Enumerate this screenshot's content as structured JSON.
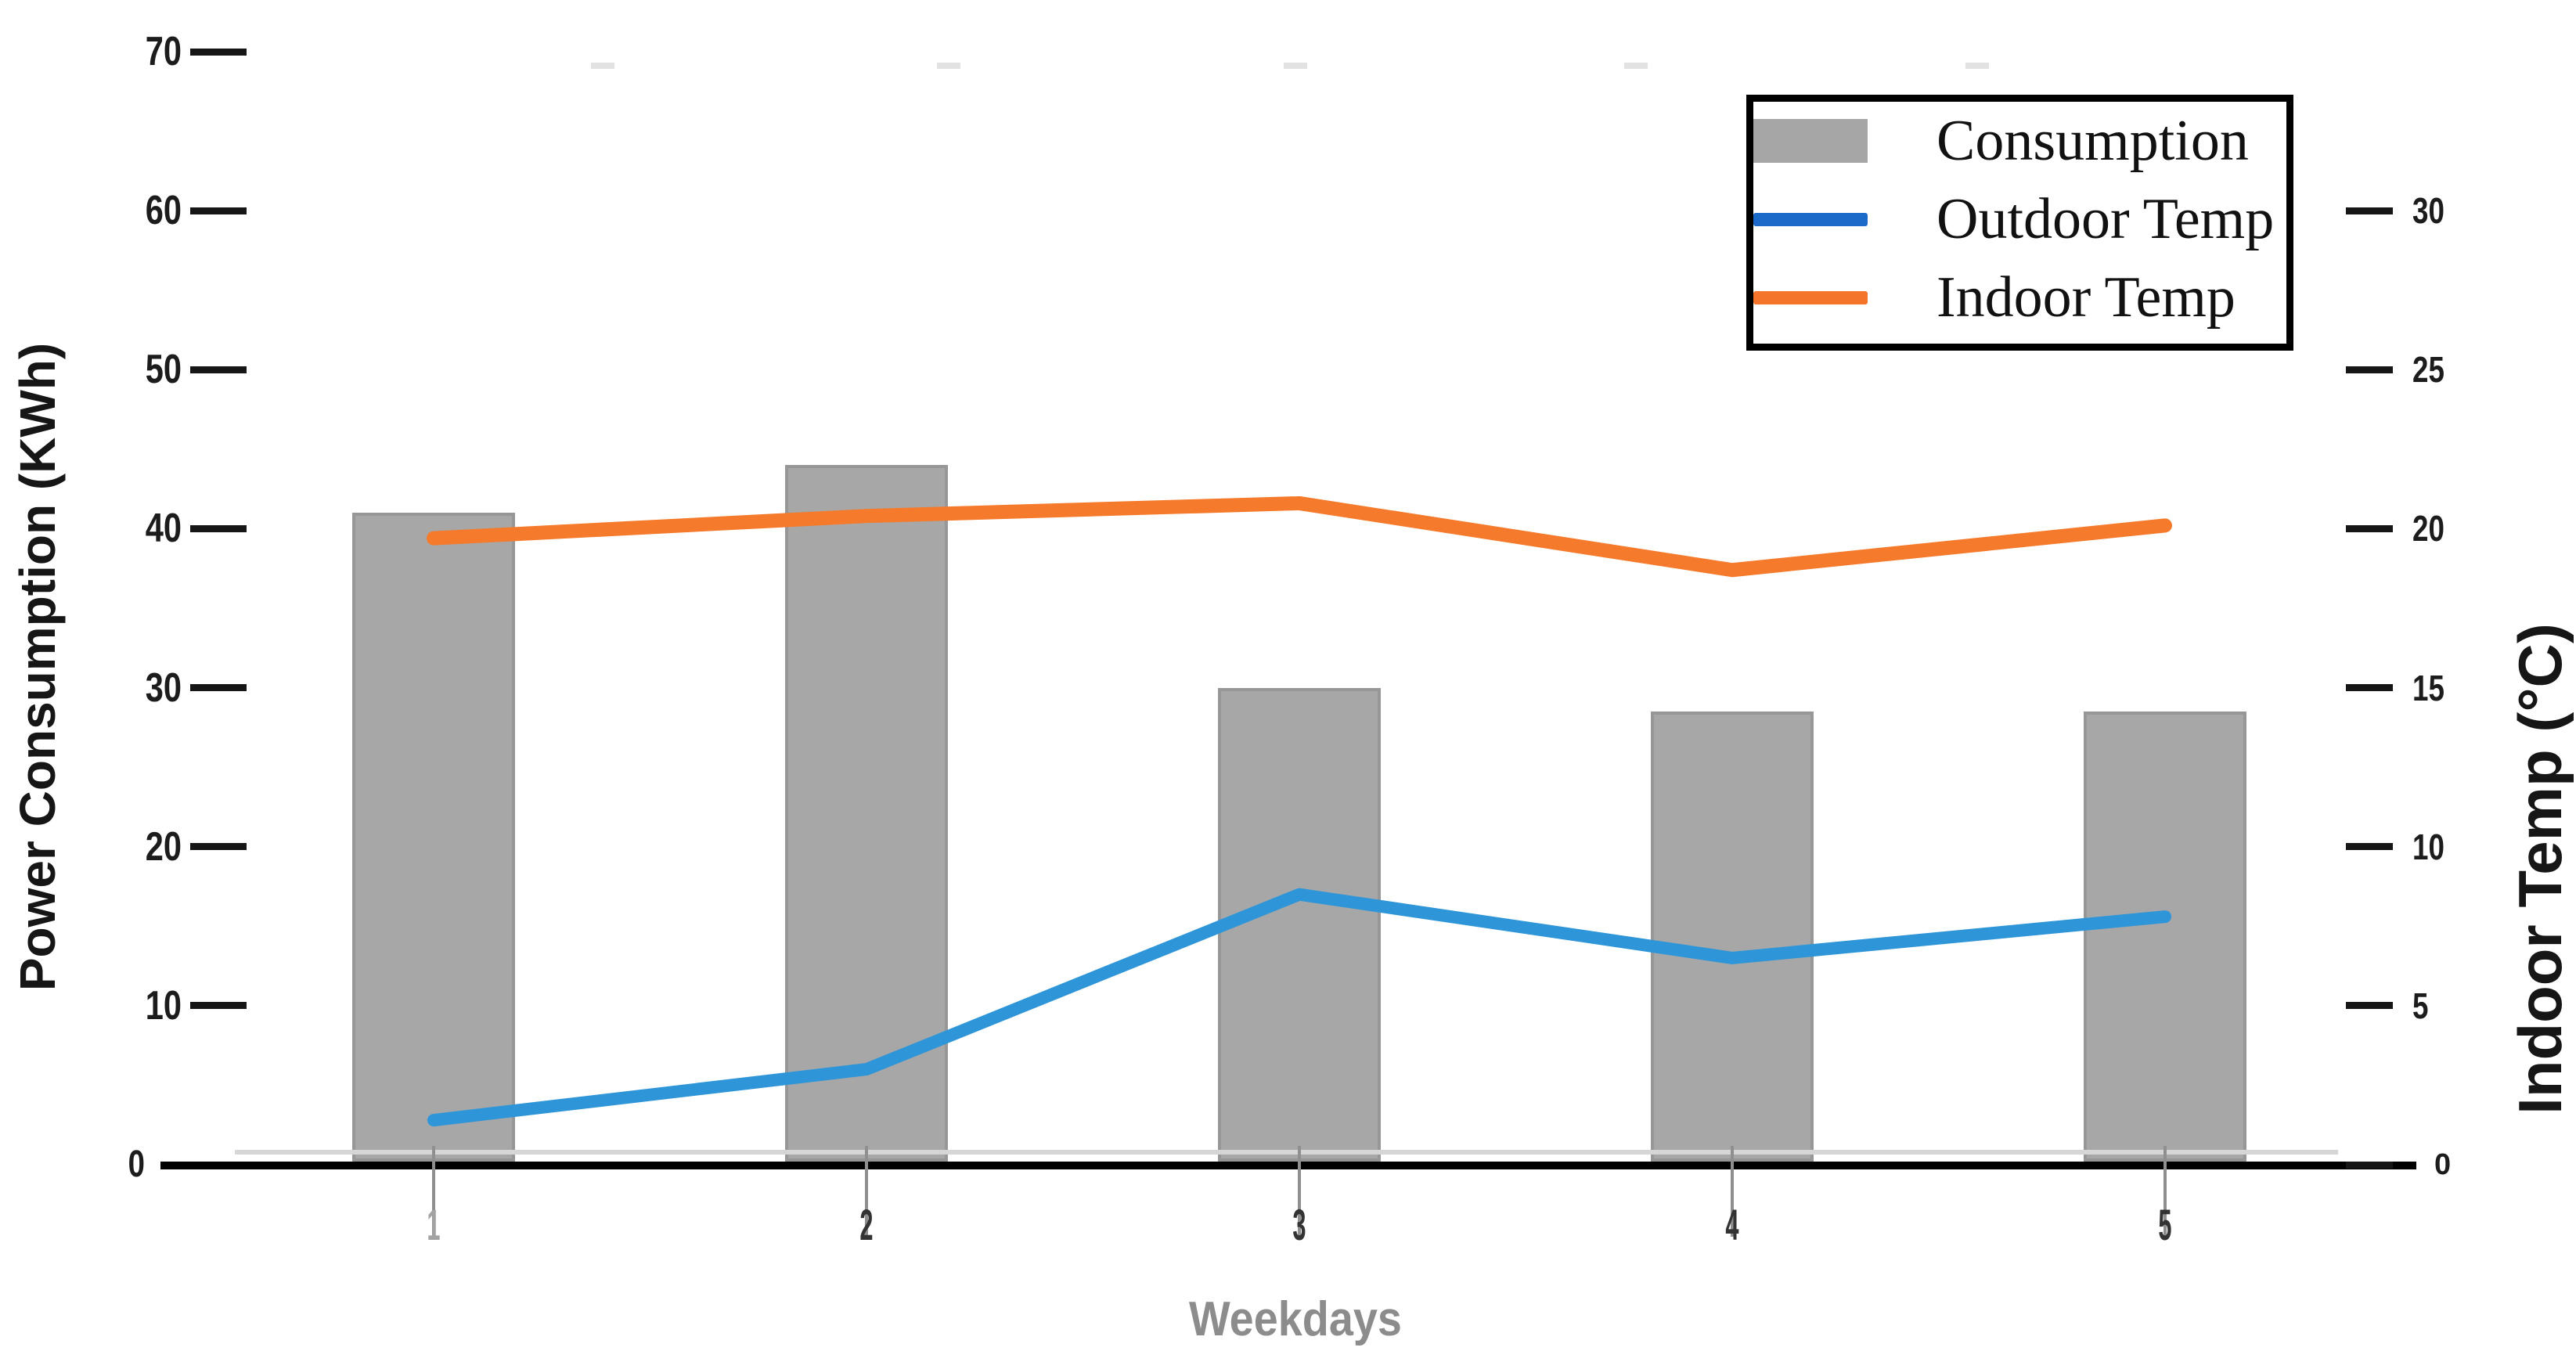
{
  "chart_data": {
    "type": "combo-bar-line",
    "title": "",
    "categories": [
      "1",
      "2",
      "3",
      "4",
      "5"
    ],
    "x_axis": {
      "label": "Weekdays"
    },
    "left_axis": {
      "label": "Power Consumption (KWh)",
      "ticks": [
        70,
        60,
        50,
        40,
        30,
        20,
        10
      ],
      "zero_label": "0",
      "range": [
        0,
        70
      ],
      "units_per_tick": 10
    },
    "right_axis": {
      "label": "Indoor Temp (°C)",
      "ticks": [
        30,
        25,
        20,
        15,
        10,
        5
      ],
      "zero_label": "0",
      "range": [
        0,
        35
      ],
      "units_per_tick": 5
    },
    "series": [
      {
        "name": "Consumption",
        "type": "bar",
        "axis": "left",
        "color": "#a7a7a7",
        "border_color": "#979797",
        "legend_color": "#a6a6a6",
        "values": [
          41,
          44,
          30,
          28.5,
          28.5
        ]
      },
      {
        "name": "Outdoor Temp",
        "type": "line",
        "axis": "right",
        "color": "#2e96d8",
        "legend_color": "#1b6ac9",
        "values": [
          1.4,
          3.0,
          8.5,
          6.5,
          7.8
        ]
      },
      {
        "name": "Indoor Temp",
        "type": "line",
        "axis": "right",
        "color": "#f57a2b",
        "legend_color": "#f4742a",
        "values": [
          19.7,
          20.4,
          20.8,
          18.7,
          20.1
        ]
      }
    ],
    "legend": {
      "position": "top-right",
      "border": "#000000"
    },
    "grid": false,
    "x_label_colors": [
      "#a3a3a3",
      "#333333",
      "#333333",
      "#333333",
      "#333333"
    ]
  }
}
